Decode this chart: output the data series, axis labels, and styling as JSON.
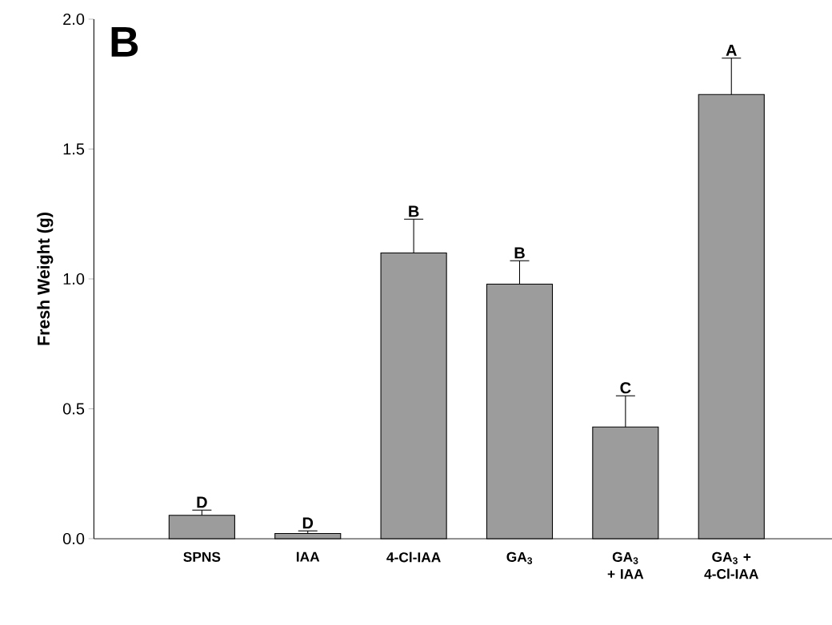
{
  "chart_data": {
    "type": "bar",
    "ylabel": "Fresh Weight (g)",
    "categories": [
      "SPNS",
      "IAA",
      "4-Cl-IAA",
      "GA$_{3}$",
      "GA$_{3}$ + IAA",
      "GA$_{3}$ + 4-Cl-IAA"
    ],
    "values": [
      0.09,
      0.02,
      1.1,
      0.98,
      0.43,
      1.71
    ],
    "errors": [
      [
        0.09,
        0.11
      ],
      [
        0.02,
        0.03
      ],
      [
        1.1,
        1.23
      ],
      [
        0.98,
        1.07
      ],
      [
        0.43,
        0.55
      ],
      [
        1.71,
        1.85
      ]
    ],
    "color": "#9c9c9c",
    "ylim": [
      0,
      2.0
    ],
    "yticks": [
      {
        "value": 0,
        "label": "0.0"
      },
      {
        "value": 0.5,
        "label": "0.5"
      },
      {
        "value": 1.0,
        "label": "1.0"
      },
      1.5,
      {
        "value": 2.0,
        "label": "2.0"
      }
    ],
    "annotations": [
      "B",
      {
        "text": "D",
        "x": "SPNS",
        "y": 0.09
      },
      {
        "text": "D",
        "x": "IAA",
        "y": 0.02
      },
      {
        "text": "B",
        "x": "4-Cl-IAA",
        "y": 1.1
      },
      {
        "text": "B",
        "x": "GA$_{3}$",
        "y": 0.98
      },
      {
        "text": "C",
        "x": "GA$_{3}$ + IAA",
        "y": 0.43
      },
      {
        "text": "A",
        "x": "GA$_{3}$ + 4-Cl-IAA",
        "y": 1.71
      }
    ]
  }
}
